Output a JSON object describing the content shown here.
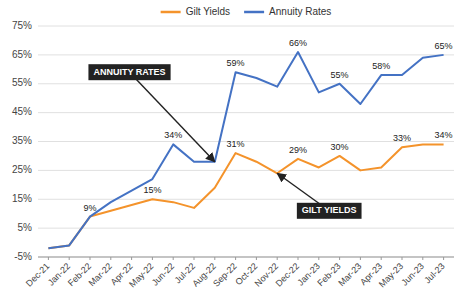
{
  "chart_data": {
    "type": "line",
    "categories": [
      "Dec-21",
      "Jan-22",
      "Feb-22",
      "Mar-22",
      "Apr-22",
      "May-22",
      "Jun-22",
      "Jul-22",
      "Aug-22",
      "Sep-22",
      "Oct-22",
      "Nov-22",
      "Dec-22",
      "Jan-23",
      "Feb-23",
      "Mar-23",
      "Apr-23",
      "May-23",
      "Jun-23",
      "Jul-23"
    ],
    "series": [
      {
        "name": "Gilt Yields",
        "color": "#F4932B",
        "values": [
          -2,
          -1,
          9,
          11,
          13,
          15,
          14,
          12,
          19,
          31,
          28,
          24,
          29,
          26,
          30,
          25,
          26,
          33,
          34,
          34
        ],
        "value_labels": [
          null,
          null,
          "9%",
          null,
          null,
          "15%",
          null,
          null,
          null,
          "31%",
          null,
          null,
          "29%",
          null,
          "30%",
          null,
          null,
          "33%",
          null,
          "34%"
        ]
      },
      {
        "name": "Annuity Rates",
        "color": "#4472C4",
        "values": [
          -2,
          -1,
          9,
          14,
          18,
          22,
          34,
          28,
          28,
          59,
          57,
          54,
          66,
          52,
          55,
          48,
          58,
          58,
          64,
          65
        ],
        "value_labels": [
          null,
          null,
          null,
          null,
          null,
          null,
          "34%",
          null,
          null,
          "59%",
          null,
          null,
          "66%",
          null,
          "55%",
          null,
          "58%",
          null,
          null,
          "65%"
        ]
      }
    ],
    "annotations": [
      {
        "text": "GILT YIELDS"
      },
      {
        "text": "ANNUITY RATES"
      }
    ],
    "ylim": [
      -5,
      75
    ],
    "yticks": [
      {
        "value": -5,
        "label": "-5%"
      },
      {
        "value": 5,
        "label": "5%"
      },
      {
        "value": 15,
        "label": "15%"
      },
      {
        "value": 25,
        "label": "25%"
      },
      {
        "value": 35,
        "label": "35%"
      },
      {
        "value": 45,
        "label": "45%"
      },
      {
        "value": 55,
        "label": "55%"
      },
      {
        "value": 65,
        "label": "65%"
      },
      {
        "value": 75,
        "label": "75%"
      }
    ],
    "grid": true,
    "data_labels": true,
    "legend": "top"
  }
}
